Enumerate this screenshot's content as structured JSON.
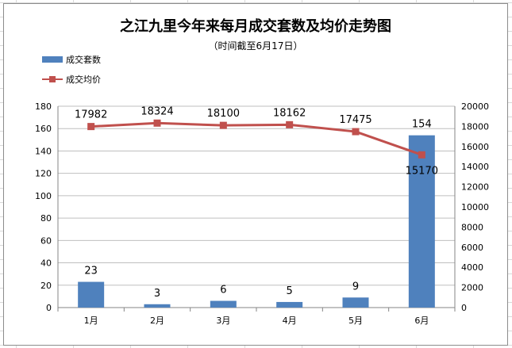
{
  "chart_data": {
    "type": "bar+line",
    "title": "之江九里今年来每月成交套数及均价走势图",
    "subtitle": "（时间截至6月17日）",
    "categories": [
      "1月",
      "2月",
      "3月",
      "4月",
      "5月",
      "6月"
    ],
    "series": [
      {
        "name": "成交套数",
        "type": "bar",
        "axis": "left",
        "values": [
          23,
          3,
          6,
          5,
          9,
          154
        ],
        "color": "#4f81bd"
      },
      {
        "name": "成交均价",
        "type": "line",
        "axis": "right",
        "values": [
          17982,
          18324,
          18100,
          18162,
          17475,
          15170
        ],
        "color": "#c0504d"
      }
    ],
    "y_left": {
      "min": 0,
      "max": 180,
      "step": 20
    },
    "y_right": {
      "min": 0,
      "max": 20000,
      "step": 2000
    },
    "legend_position": "top-left",
    "grid": true
  }
}
